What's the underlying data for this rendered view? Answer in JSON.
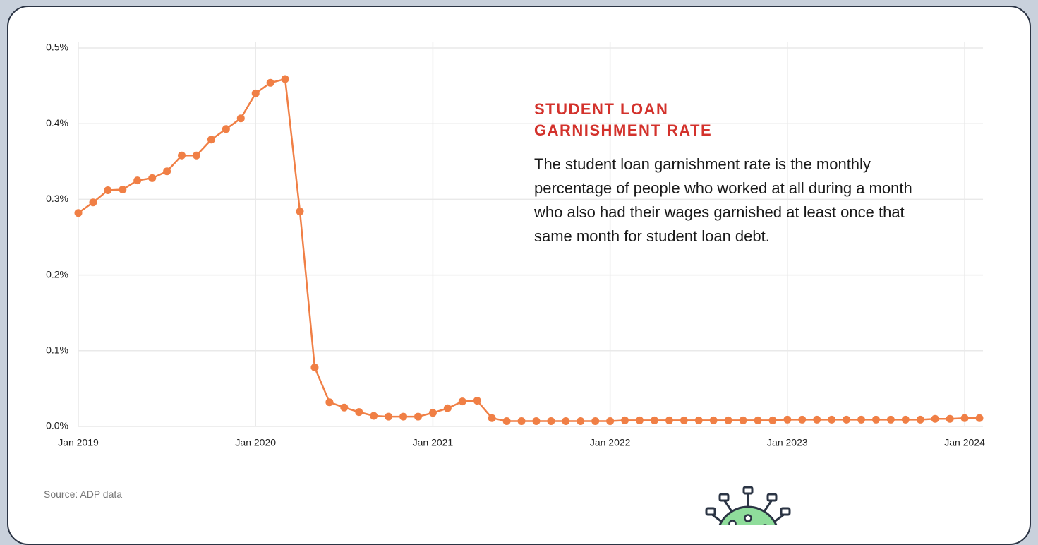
{
  "chart_data": {
    "type": "line",
    "annotation_title": "STUDENT LOAN GARNISHMENT RATE",
    "annotation_text": "The student loan garnishment rate is the monthly percentage of people who worked at all during a month who also had their wages garnished at least once that same month for student loan debt.",
    "source": "Source: ADP data",
    "x": [
      "2019-01",
      "2019-02",
      "2019-03",
      "2019-04",
      "2019-05",
      "2019-06",
      "2019-07",
      "2019-08",
      "2019-09",
      "2019-10",
      "2019-11",
      "2019-12",
      "2020-01",
      "2020-02",
      "2020-03",
      "2020-04",
      "2020-05",
      "2020-06",
      "2020-07",
      "2020-08",
      "2020-09",
      "2020-10",
      "2020-11",
      "2020-12",
      "2021-01",
      "2021-02",
      "2021-03",
      "2021-04",
      "2021-05",
      "2021-06",
      "2021-07",
      "2021-08",
      "2021-09",
      "2021-10",
      "2021-11",
      "2021-12",
      "2022-01",
      "2022-02",
      "2022-03",
      "2022-04",
      "2022-05",
      "2022-06",
      "2022-07",
      "2022-08",
      "2022-09",
      "2022-10",
      "2022-11",
      "2022-12",
      "2023-01",
      "2023-02",
      "2023-03",
      "2023-04",
      "2023-05",
      "2023-06",
      "2023-07",
      "2023-08",
      "2023-09",
      "2023-10",
      "2023-11",
      "2023-12",
      "2024-01",
      "2024-02"
    ],
    "series": [
      {
        "name": "Student loan garnishment rate",
        "color": "#f07f45",
        "values": [
          0.282,
          0.296,
          0.312,
          0.313,
          0.325,
          0.328,
          0.337,
          0.358,
          0.358,
          0.379,
          0.393,
          0.407,
          0.44,
          0.454,
          0.459,
          0.284,
          0.078,
          0.032,
          0.025,
          0.019,
          0.014,
          0.013,
          0.013,
          0.013,
          0.018,
          0.024,
          0.033,
          0.034,
          0.011,
          0.007,
          0.007,
          0.007,
          0.007,
          0.007,
          0.007,
          0.007,
          0.007,
          0.008,
          0.008,
          0.008,
          0.008,
          0.008,
          0.008,
          0.008,
          0.008,
          0.008,
          0.008,
          0.008,
          0.009,
          0.009,
          0.009,
          0.009,
          0.009,
          0.009,
          0.009,
          0.009,
          0.009,
          0.009,
          0.01,
          0.01,
          0.011,
          0.011
        ]
      }
    ],
    "xlim": [
      "2019-01",
      "2024-02"
    ],
    "xticks": [
      {
        "value": "2019-01",
        "label": "Jan 2019"
      },
      {
        "value": "2020-01",
        "label": "Jan 2020"
      },
      {
        "value": "2021-01",
        "label": "Jan 2021"
      },
      {
        "value": "2022-01",
        "label": "Jan 2022"
      },
      {
        "value": "2023-01",
        "label": "Jan 2023"
      },
      {
        "value": "2024-01",
        "label": "Jan 2024"
      }
    ],
    "ylim": [
      0,
      0.5
    ],
    "yticks": [
      {
        "value": 0,
        "label": "0.0%"
      },
      {
        "value": 0.1,
        "label": "0.1%"
      },
      {
        "value": 0.2,
        "label": "0.2%"
      },
      {
        "value": 0.3,
        "label": "0.3%"
      },
      {
        "value": 0.4,
        "label": "0.4%"
      },
      {
        "value": 0.5,
        "label": "0.5%"
      }
    ],
    "grid": true
  }
}
